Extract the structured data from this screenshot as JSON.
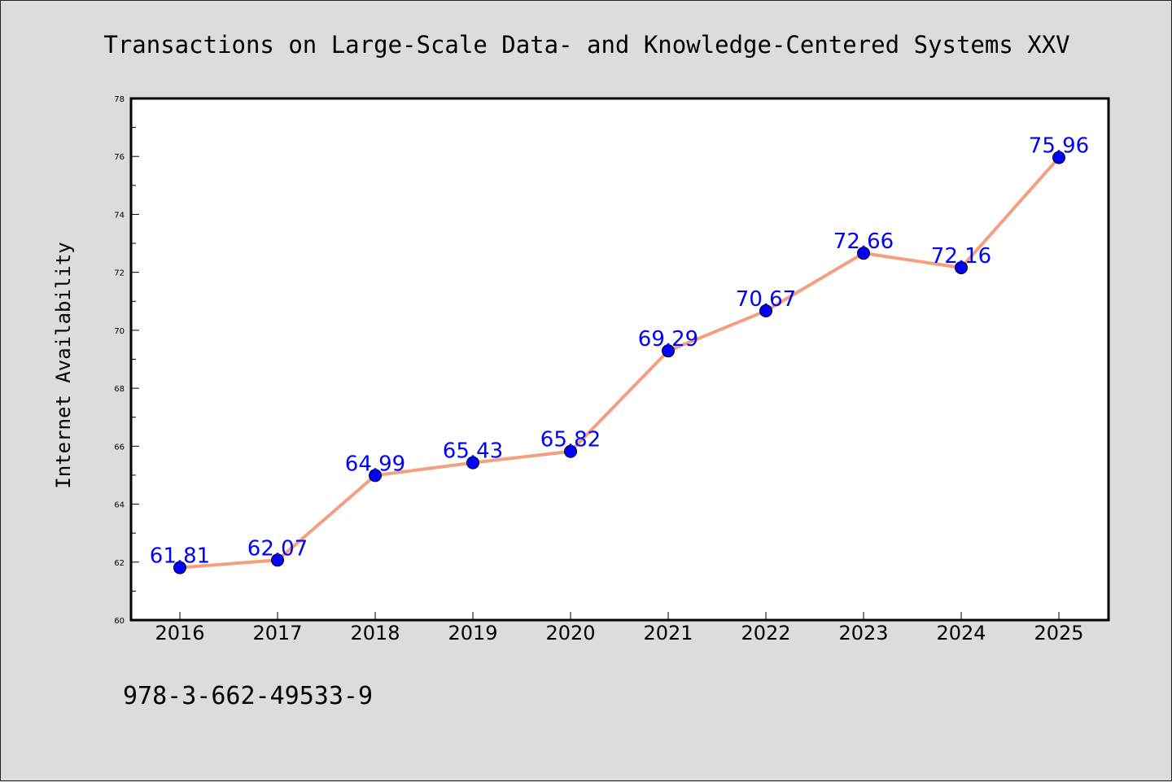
{
  "footer": {
    "isbn": "978-3-662-49533-9"
  },
  "chart_data": {
    "type": "line",
    "title": "Transactions on Large-Scale Data- and Knowledge-Centered Systems XXV",
    "xlabel": "",
    "ylabel": "Internet Availability",
    "categories": [
      "2016",
      "2017",
      "2018",
      "2019",
      "2020",
      "2021",
      "2022",
      "2023",
      "2024",
      "2025"
    ],
    "values": [
      61.81,
      62.07,
      64.99,
      65.43,
      65.82,
      69.29,
      70.67,
      72.66,
      72.16,
      75.96
    ],
    "data_labels": [
      "61.81",
      "62.07",
      "64.99",
      "65.43",
      "65.82",
      "69.29",
      "70.67",
      "72.66",
      "72.16",
      "75.96"
    ],
    "ylim": [
      60,
      78
    ],
    "yticks": [
      "60",
      "62",
      "64",
      "66",
      "68",
      "70",
      "72",
      "74",
      "76",
      "78"
    ],
    "grid": false,
    "legend": "none",
    "colors": {
      "line": "#f4a07e",
      "marker": "#0000ff",
      "label": "#0000ff",
      "background": "#dcdcdc",
      "plot_background": "#ffffff"
    }
  }
}
